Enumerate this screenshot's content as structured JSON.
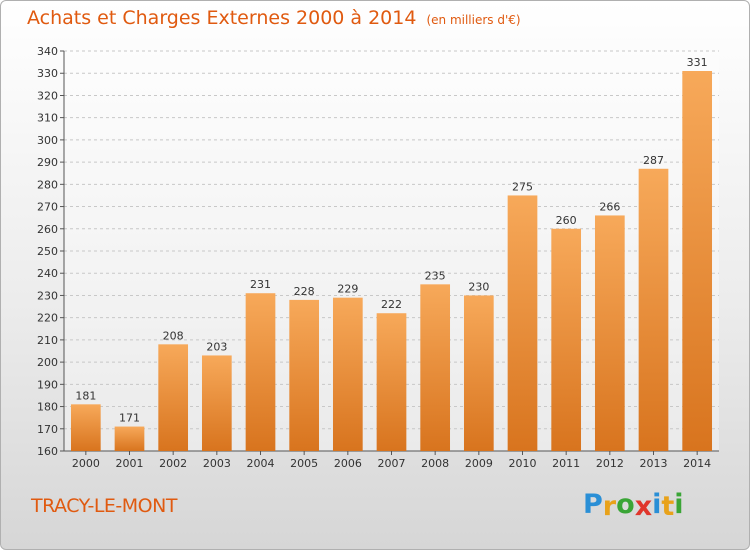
{
  "chart_data": {
    "type": "bar",
    "title": "Achats et Charges Externes 2000 à 2014",
    "subtitle": "(en milliers d'€)",
    "categories": [
      "2000",
      "2001",
      "2002",
      "2003",
      "2004",
      "2005",
      "2006",
      "2007",
      "2008",
      "2009",
      "2010",
      "2011",
      "2012",
      "2013",
      "2014"
    ],
    "values": [
      181,
      171,
      208,
      203,
      231,
      228,
      229,
      222,
      235,
      230,
      275,
      260,
      266,
      287,
      331
    ],
    "ylim": [
      160,
      340
    ],
    "yticks": [
      160,
      170,
      180,
      190,
      200,
      210,
      220,
      230,
      240,
      250,
      260,
      270,
      280,
      290,
      300,
      310,
      320,
      330,
      340
    ],
    "grid": true,
    "bar_color": "#f0943a",
    "xlabel": "",
    "ylabel": ""
  },
  "location": "TRACY-LE-MONT",
  "brand": {
    "letters": [
      "P",
      "r",
      "o",
      "x",
      "i",
      "t",
      "i"
    ],
    "colors": [
      "#2a8fd6",
      "#e8a21a",
      "#3aa536",
      "#e0362c",
      "#2a8fd6",
      "#e8a21a",
      "#3aa536"
    ]
  }
}
